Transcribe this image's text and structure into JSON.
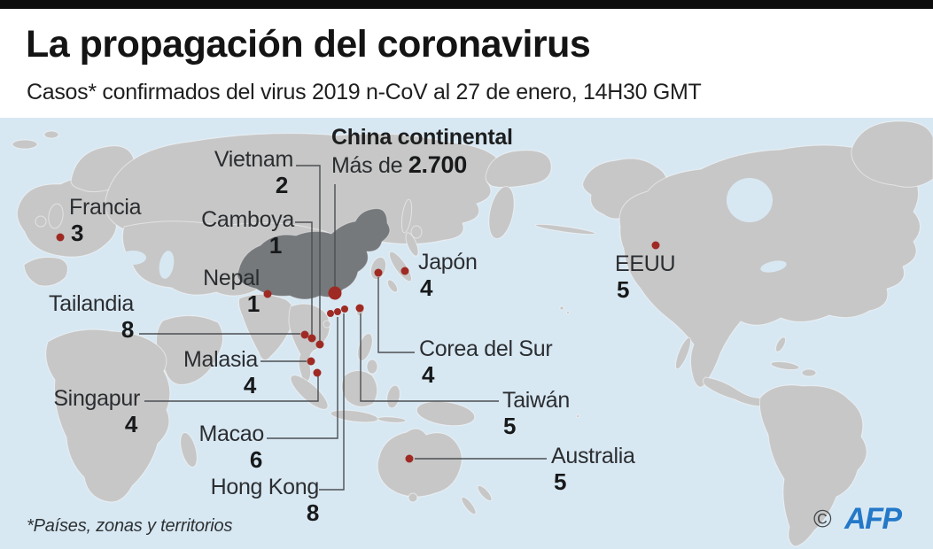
{
  "header": {
    "title": "La propagación del coronavirus",
    "subtitle": "Casos* confirmados del virus 2019 n-CoV al 27 de enero, 14H30 GMT"
  },
  "map": {
    "china_label": {
      "name": "China continental",
      "value_prefix": "Más de",
      "value": "2.700"
    },
    "labels": [
      {
        "id": "vietnam",
        "name": "Vietnam",
        "value": "2"
      },
      {
        "id": "camboya",
        "name": "Camboya",
        "value": "1"
      },
      {
        "id": "francia",
        "name": "Francia",
        "value": "3"
      },
      {
        "id": "nepal",
        "name": "Nepal",
        "value": "1"
      },
      {
        "id": "tailandia",
        "name": "Tailandia",
        "value": "8"
      },
      {
        "id": "malasia",
        "name": "Malasia",
        "value": "4"
      },
      {
        "id": "singapur",
        "name": "Singapur",
        "value": "4"
      },
      {
        "id": "macao",
        "name": "Macao",
        "value": "6"
      },
      {
        "id": "hong-kong",
        "name": "Hong Kong",
        "value": "8"
      },
      {
        "id": "japon",
        "name": "Japón",
        "value": "4"
      },
      {
        "id": "corea-del-sur",
        "name": "Corea del Sur",
        "value": "4"
      },
      {
        "id": "taiwan",
        "name": "Taiwán",
        "value": "5"
      },
      {
        "id": "australia",
        "name": "Australia",
        "value": "5"
      },
      {
        "id": "eeuu",
        "name": "EEUU",
        "value": "5"
      }
    ]
  },
  "footer": {
    "footnote": "*Países, zonas y territorios",
    "credit_symbol": "©",
    "credit": "AFP"
  },
  "colors": {
    "sea": "#d8e8f3",
    "land": "#c7c7c7",
    "china": "#75797c",
    "dot": "#9f2a24",
    "afp_blue": "#2478c8"
  }
}
